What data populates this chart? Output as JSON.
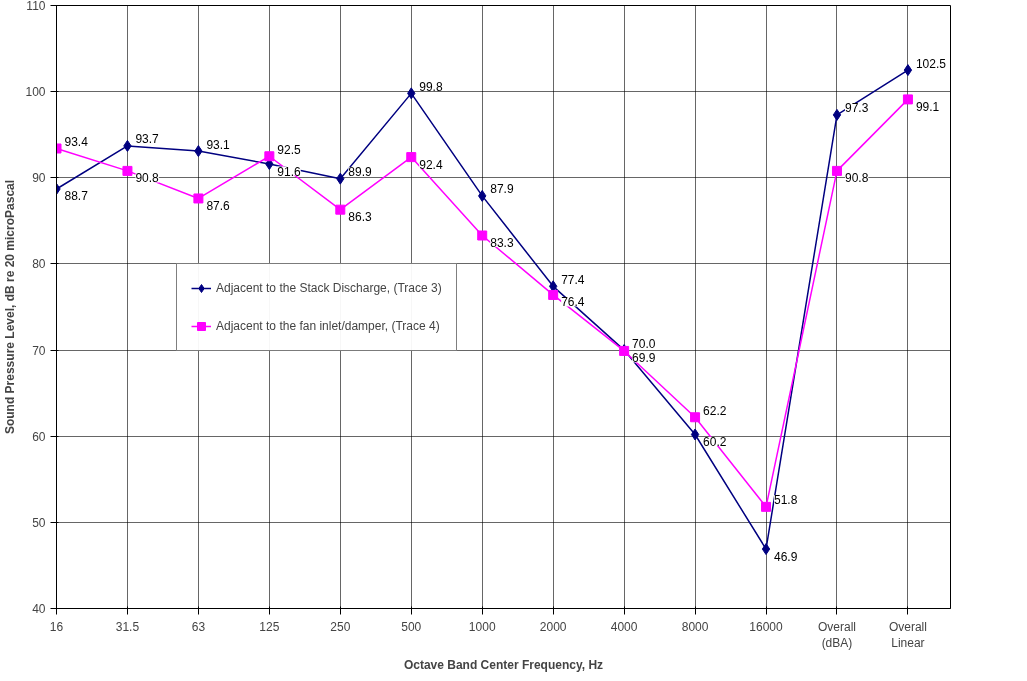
{
  "chart_data": {
    "type": "line",
    "xlabel": "Octave Band Center Frequency, Hz",
    "ylabel": "Sound Pressure Level, dB re 20 microPascal",
    "categories": [
      "16",
      "31.5",
      "63",
      "125",
      "250",
      "500",
      "1000",
      "2000",
      "4000",
      "8000",
      "16000",
      "Overall\n(dBA)",
      "Overall\nLinear"
    ],
    "series": [
      {
        "name": "Adjacent to the Stack Discharge, (Trace 3)",
        "color": "#000080",
        "marker": "diamond",
        "values": [
          88.7,
          93.7,
          93.1,
          91.6,
          89.9,
          99.8,
          87.9,
          77.4,
          70.0,
          60.2,
          46.9,
          97.3,
          102.5
        ],
        "value_labels": [
          "88.7",
          "93.7",
          "93.1",
          "91.6",
          "89.9",
          "99.8",
          "87.9",
          "77.4",
          "70.0",
          "60.2",
          "46.9",
          "97.3",
          "102.5"
        ]
      },
      {
        "name": "Adjacent to the fan inlet/damper, (Trace 4)",
        "color": "#ff00ff",
        "marker": "square",
        "values": [
          93.4,
          90.8,
          87.6,
          92.5,
          86.3,
          92.4,
          83.3,
          76.4,
          69.9,
          62.2,
          51.8,
          90.8,
          99.1
        ],
        "value_labels": [
          "93.4",
          "90.8",
          "87.6",
          "92.5",
          "86.3",
          "92.4",
          "83.3",
          "76.4",
          "69.9",
          "62.2",
          "51.8",
          "90.8",
          "99.1"
        ]
      }
    ],
    "ylim": [
      40,
      110
    ],
    "yticks": [
      40,
      50,
      60,
      70,
      80,
      90,
      100,
      110
    ],
    "grid": true,
    "legend": "left",
    "data_labels": true,
    "line_style": "solid"
  }
}
